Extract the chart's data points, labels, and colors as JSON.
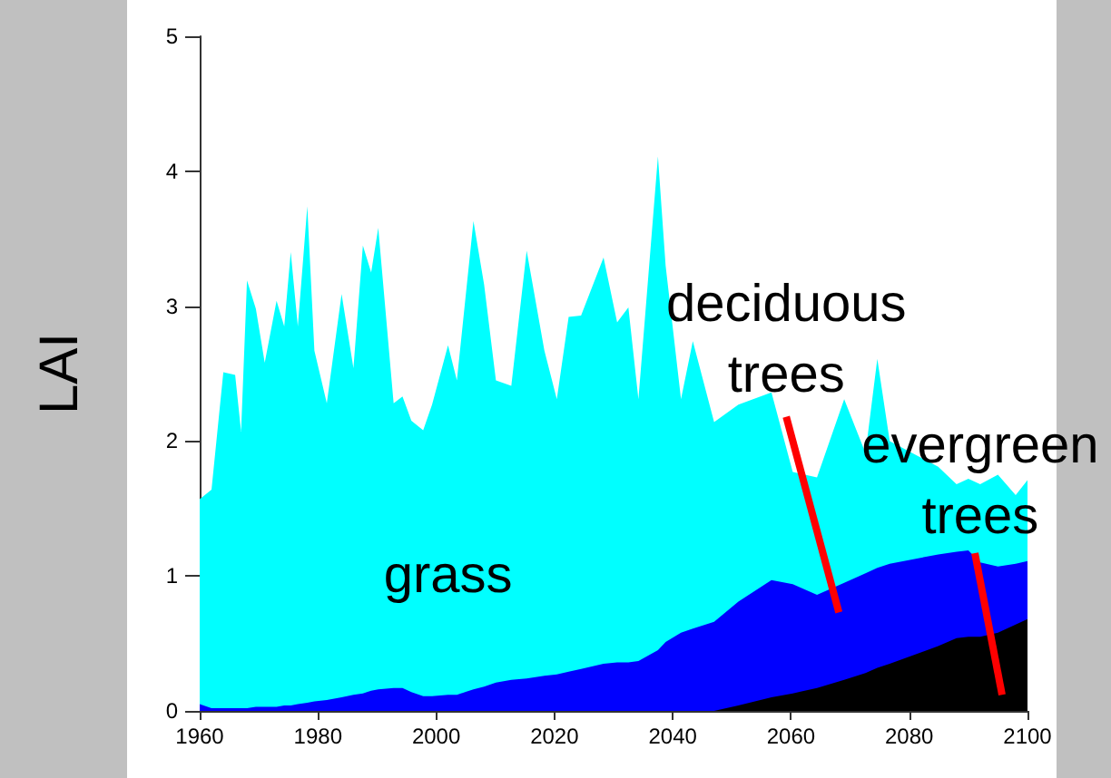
{
  "chart_data": {
    "type": "area",
    "stacked": true,
    "ylabel": "LAI",
    "legend": false,
    "grid": false,
    "marker": "none",
    "xlim": [
      1960,
      2100
    ],
    "xticks": [
      1960,
      1980,
      2000,
      2020,
      2040,
      2060,
      2080,
      2100
    ],
    "ylim": [
      0,
      5
    ],
    "yticks": [
      0,
      1,
      2,
      3,
      4,
      5
    ],
    "x": [
      1960,
      1962,
      1964,
      1966,
      1967,
      1968,
      1969.5,
      1971,
      1973,
      1974.3,
      1975.4,
      1976.6,
      1978.2,
      1979.4,
      1981.5,
      1984,
      1986,
      1987.6,
      1989,
      1990.2,
      1992.8,
      1994.3,
      1995.8,
      1997.8,
      1999.3,
      2002,
      2003.5,
      2006.3,
      2008.1,
      2010.1,
      2012.7,
      2015.3,
      2018.3,
      2020.4,
      2022.4,
      2024.5,
      2028.3,
      2030.6,
      2032.5,
      2034.2,
      2037.5,
      2038.8,
      2041.4,
      2043.4,
      2047,
      2051.1,
      2056.7,
      2060.3,
      2064.4,
      2069,
      2072.6,
      2074.6,
      2076.7,
      2084.9,
      2088,
      2090,
      2092,
      2095,
      2098,
      2100
    ],
    "series": [
      {
        "name": "evergreen trees",
        "color": "#000000",
        "values": [
          0,
          0,
          0,
          0,
          0,
          0,
          0,
          0,
          0,
          0,
          0,
          0,
          0,
          0,
          0,
          0,
          0,
          0,
          0,
          0,
          0,
          0,
          0,
          0,
          0,
          0,
          0,
          0,
          0,
          0,
          0,
          0,
          0,
          0,
          0,
          0,
          0,
          0,
          0,
          0,
          0,
          0,
          0,
          0,
          0,
          0.04,
          0.1,
          0.13,
          0.17,
          0.23,
          0.28,
          0.32,
          0.35,
          0.48,
          0.54,
          0.55,
          0.55,
          0.58,
          0.64,
          0.68
        ]
      },
      {
        "name": "deciduous trees",
        "color": "#0000ff",
        "values": [
          0.05,
          0.02,
          0.02,
          0.02,
          0.02,
          0.02,
          0.03,
          0.03,
          0.03,
          0.04,
          0.04,
          0.05,
          0.06,
          0.07,
          0.08,
          0.1,
          0.12,
          0.13,
          0.15,
          0.16,
          0.17,
          0.17,
          0.14,
          0.11,
          0.11,
          0.12,
          0.12,
          0.16,
          0.18,
          0.21,
          0.23,
          0.24,
          0.26,
          0.27,
          0.29,
          0.31,
          0.35,
          0.36,
          0.36,
          0.37,
          0.45,
          0.51,
          0.58,
          0.61,
          0.66,
          0.77,
          0.87,
          0.81,
          0.69,
          0.72,
          0.74,
          0.74,
          0.74,
          0.68,
          0.64,
          0.64,
          0.55,
          0.49,
          0.45,
          0.43
        ]
      },
      {
        "name": "grass",
        "color": "#00ffff",
        "values": [
          1.52,
          1.62,
          2.49,
          2.47,
          2.05,
          3.17,
          2.95,
          2.55,
          3.01,
          2.81,
          3.36,
          2.8,
          3.68,
          2.6,
          2.2,
          2.99,
          2.42,
          3.32,
          3.1,
          3.42,
          2.11,
          2.16,
          2.01,
          1.97,
          2.16,
          2.59,
          2.33,
          3.47,
          2.98,
          2.24,
          2.18,
          3.17,
          2.41,
          2.04,
          2.63,
          2.62,
          3.01,
          2.52,
          2.63,
          1.94,
          3.66,
          2.79,
          1.73,
          2.13,
          1.48,
          1.46,
          1.39,
          0.83,
          0.87,
          1.36,
          0.89,
          1.55,
          0.91,
          0.65,
          0.5,
          0.53,
          0.58,
          0.68,
          0.51,
          0.6
        ]
      }
    ]
  }
}
